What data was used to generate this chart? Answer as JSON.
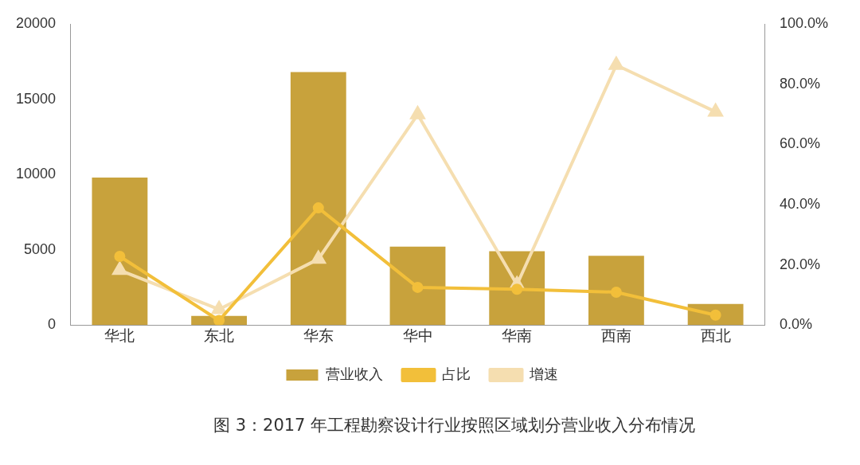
{
  "chart_data": {
    "type": "bar",
    "title": "图 3：2017 年工程勘察设计行业按照区域划分营业收入分布情况",
    "categories": [
      "华北",
      "东北",
      "华东",
      "华中",
      "华南",
      "西南",
      "西北"
    ],
    "series": [
      {
        "name": "营业收入",
        "color": "#c8a23c",
        "values": [
          9800,
          600,
          16800,
          5200,
          4900,
          4600,
          1400
        ]
      },
      {
        "name": "占比",
        "type": "line",
        "axis": "y2",
        "color": "#f2bf3a",
        "marker": "circle",
        "values": [
          22.8,
          1.5,
          38.9,
          12.5,
          11.9,
          10.9,
          3.3
        ]
      },
      {
        "name": "增速",
        "type": "line",
        "axis": "y2",
        "color": "#f5deb0",
        "marker": "triangle",
        "values": [
          18.2,
          5.2,
          21.9,
          69.9,
          13.4,
          86.3,
          70.8
        ]
      }
    ],
    "ylim": [
      0,
      20000
    ],
    "yticks": [
      0,
      5000,
      10000,
      15000,
      20000
    ],
    "y2lim": [
      0,
      100
    ],
    "y2ticks": [
      {
        "value": 0,
        "label": "0.0%"
      },
      {
        "value": 20,
        "label": "20.0%"
      },
      {
        "value": 40,
        "label": "40.0%"
      },
      {
        "value": 60,
        "label": "60.0%"
      },
      {
        "value": 80,
        "label": "80.0%"
      },
      {
        "value": 100,
        "label": "100.0%"
      }
    ],
    "grid": false,
    "legend": "bottom"
  }
}
